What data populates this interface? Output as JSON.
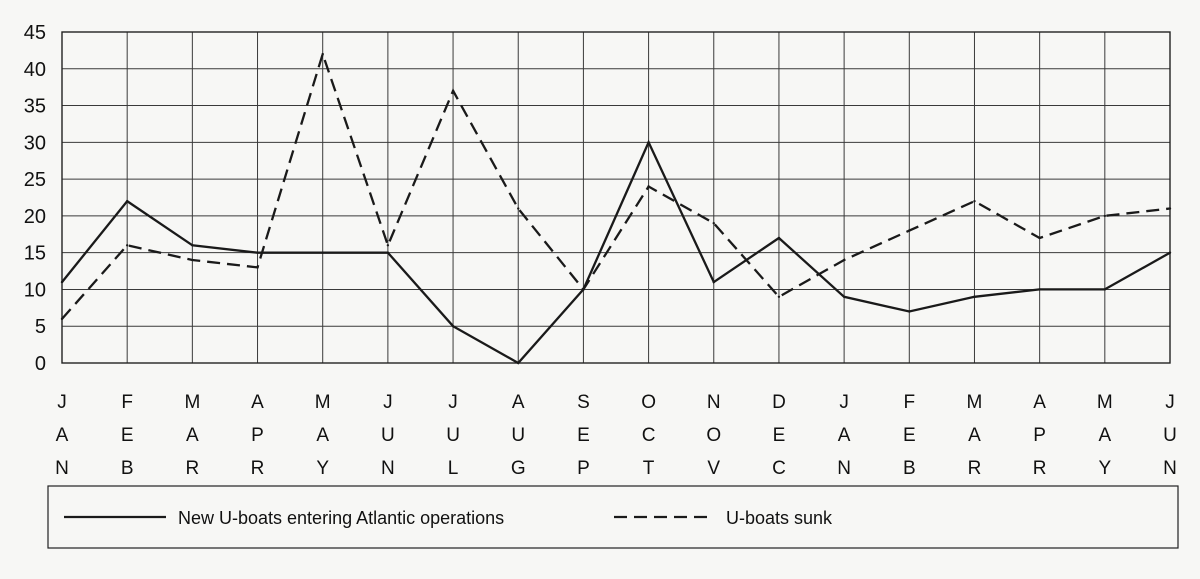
{
  "chart_data": {
    "type": "line",
    "title": "",
    "xlabel": "",
    "ylabel": "",
    "categories": [
      "JAN",
      "FEB",
      "MAR",
      "APR",
      "MAY",
      "JUN",
      "JUL",
      "AUG",
      "SEP",
      "OCT",
      "NOV",
      "DEC",
      "JAN",
      "FEB",
      "MAR",
      "APR",
      "MAY",
      "JUN"
    ],
    "ylim": [
      0,
      45
    ],
    "yticks": [
      0,
      5,
      10,
      15,
      20,
      25,
      30,
      35,
      40,
      45
    ],
    "grid": true,
    "legend": "bottom",
    "series": [
      {
        "name": "New U-boats entering Atlantic operations",
        "style": "solid",
        "color": "#1a1a1a",
        "values": [
          11,
          22,
          16,
          15,
          15,
          15,
          5,
          0,
          10,
          30,
          11,
          17,
          9,
          7,
          9,
          10,
          10,
          15
        ]
      },
      {
        "name": "U-boats sunk",
        "style": "dashed",
        "color": "#1a1a1a",
        "values": [
          6,
          16,
          14,
          13,
          42,
          16,
          37,
          21,
          10,
          24,
          19,
          9,
          14,
          18,
          22,
          17,
          20,
          21
        ]
      }
    ]
  }
}
